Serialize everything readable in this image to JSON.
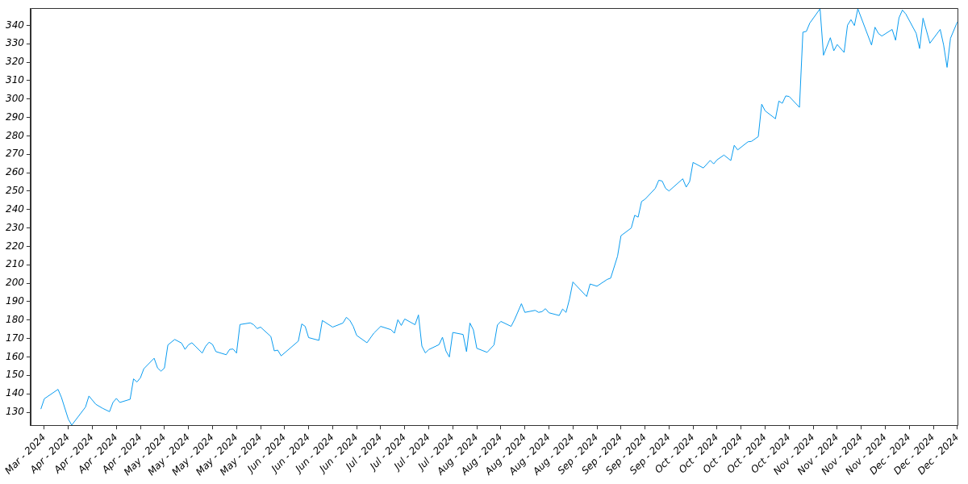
{
  "chart_data": {
    "type": "line",
    "x": [
      "2024-03-27",
      "2024-03-28",
      "2024-04-01",
      "2024-04-02",
      "2024-04-04",
      "2024-04-05",
      "2024-04-09",
      "2024-04-10",
      "2024-04-12",
      "2024-04-14",
      "2024-04-16",
      "2024-04-17",
      "2024-04-18",
      "2024-04-19",
      "2024-04-22",
      "2024-04-23",
      "2024-04-24",
      "2024-04-25",
      "2024-04-26",
      "2024-04-29",
      "2024-04-30",
      "2024-05-01",
      "2024-05-02",
      "2024-05-03",
      "2024-05-05",
      "2024-05-07",
      "2024-05-08",
      "2024-05-09",
      "2024-05-10",
      "2024-05-13",
      "2024-05-14",
      "2024-05-15",
      "2024-05-16",
      "2024-05-17",
      "2024-05-20",
      "2024-05-21",
      "2024-05-22",
      "2024-05-23",
      "2024-05-24",
      "2024-05-27",
      "2024-05-28",
      "2024-05-29",
      "2024-05-30",
      "2024-06-02",
      "2024-06-03",
      "2024-06-04",
      "2024-06-05",
      "2024-06-10",
      "2024-06-11",
      "2024-06-12",
      "2024-06-13",
      "2024-06-16",
      "2024-06-17",
      "2024-06-20",
      "2024-06-23",
      "2024-06-24",
      "2024-06-25",
      "2024-06-26",
      "2024-06-27",
      "2024-06-30",
      "2024-07-02",
      "2024-07-04",
      "2024-07-07",
      "2024-07-08",
      "2024-07-09",
      "2024-07-10",
      "2024-07-11",
      "2024-07-14",
      "2024-07-15",
      "2024-07-16",
      "2024-07-17",
      "2024-07-18",
      "2024-07-21",
      "2024-07-22",
      "2024-07-23",
      "2024-07-24",
      "2024-07-25",
      "2024-07-28",
      "2024-07-29",
      "2024-07-30",
      "2024-07-31",
      "2024-08-01",
      "2024-08-04",
      "2024-08-06",
      "2024-08-07",
      "2024-08-08",
      "2024-08-11",
      "2024-08-12",
      "2024-08-14",
      "2024-08-15",
      "2024-08-18",
      "2024-08-19",
      "2024-08-20",
      "2024-08-21",
      "2024-08-22",
      "2024-08-25",
      "2024-08-26",
      "2024-08-27",
      "2024-08-28",
      "2024-08-29",
      "2024-09-02",
      "2024-09-03",
      "2024-09-05",
      "2024-09-08",
      "2024-09-09",
      "2024-09-11",
      "2024-09-12",
      "2024-09-15",
      "2024-09-16",
      "2024-09-17",
      "2024-09-18",
      "2024-09-19",
      "2024-09-22",
      "2024-09-23",
      "2024-09-24",
      "2024-09-25",
      "2024-09-26",
      "2024-09-30",
      "2024-10-01",
      "2024-10-02",
      "2024-10-03",
      "2024-10-06",
      "2024-10-08",
      "2024-10-09",
      "2024-10-10",
      "2024-10-12",
      "2024-10-14",
      "2024-10-15",
      "2024-10-16",
      "2024-10-19",
      "2024-10-20",
      "2024-10-22",
      "2024-10-23",
      "2024-10-24",
      "2024-10-27",
      "2024-10-28",
      "2024-10-29",
      "2024-10-30",
      "2024-10-31",
      "2024-11-03",
      "2024-11-04",
      "2024-11-05",
      "2024-11-06",
      "2024-11-09",
      "2024-11-10",
      "2024-11-12",
      "2024-11-13",
      "2024-11-14",
      "2024-11-16",
      "2024-11-17",
      "2024-11-18",
      "2024-11-19",
      "2024-11-20",
      "2024-11-24",
      "2024-11-25",
      "2024-11-26",
      "2024-11-27",
      "2024-11-30",
      "2024-12-01",
      "2024-12-02",
      "2024-12-03",
      "2024-12-04",
      "2024-12-07",
      "2024-12-08",
      "2024-12-09",
      "2024-12-11",
      "2024-12-14",
      "2024-12-15",
      "2024-12-16",
      "2024-12-17",
      "2024-12-19"
    ],
    "series": [
      {
        "color": "#0a9cf0",
        "values": [
          131.7,
          137.3,
          142.4,
          138.0,
          126.2,
          123.0,
          132.8,
          138.8,
          134.3,
          132.1,
          130.3,
          135.3,
          137.5,
          135.3,
          137.0,
          148.1,
          146.4,
          148.7,
          153.6,
          159.3,
          154.0,
          152.3,
          154.0,
          166.5,
          169.5,
          167.5,
          164.1,
          166.6,
          167.7,
          162.1,
          165.8,
          168.0,
          166.8,
          162.9,
          161.2,
          164.1,
          164.3,
          162.1,
          177.6,
          178.5,
          177.5,
          175.4,
          176.2,
          171.1,
          163.3,
          163.7,
          160.6,
          168.6,
          177.9,
          176.6,
          170.5,
          169.0,
          179.8,
          176.2,
          178.4,
          181.5,
          179.9,
          176.6,
          171.7,
          167.7,
          172.9,
          176.6,
          174.8,
          172.9,
          180.2,
          177.1,
          180.6,
          177.5,
          182.8,
          165.9,
          162.2,
          164.0,
          166.7,
          170.7,
          163.3,
          160.0,
          173.3,
          172.2,
          162.9,
          178.4,
          174.7,
          164.7,
          162.5,
          166.5,
          177.3,
          179.3,
          176.6,
          180.3,
          188.9,
          184.2,
          185.3,
          184.2,
          184.6,
          186.2,
          184.0,
          182.5,
          186.0,
          184.2,
          191.4,
          200.7,
          192.8,
          199.6,
          198.4,
          202.1,
          202.8,
          214.7,
          225.8,
          230.0,
          236.9,
          235.9,
          244.4,
          245.6,
          251.5,
          255.9,
          255.5,
          251.5,
          250.1,
          256.7,
          252.2,
          255.2,
          265.6,
          262.6,
          266.7,
          264.8,
          267.0,
          269.6,
          266.6,
          274.9,
          272.4,
          276.8,
          277.0,
          279.6,
          297.2,
          293.6,
          289.3,
          298.9,
          297.7,
          301.7,
          301.4,
          295.5,
          336.3,
          336.7,
          341.2,
          349.0,
          323.8,
          333.3,
          326.2,
          329.6,
          325.3,
          340.1,
          343.1,
          339.9,
          349.0,
          329.3,
          339.0,
          335.6,
          334.2,
          337.8,
          331.9,
          344.1,
          348.3,
          346.1,
          335.7,
          327.4,
          343.9,
          330.3,
          337.8,
          329.3,
          317.2,
          333.0,
          341.9
        ]
      }
    ],
    "xlim": [
      "2024-03-24",
      "2024-12-19"
    ],
    "xticks": [
      {
        "value": "2024-03-28",
        "label": "Mar - 2024"
      },
      {
        "value": "2024-04-04",
        "label": "Apr - 2024"
      },
      {
        "value": "2024-04-11",
        "label": "Apr - 2024"
      },
      {
        "value": "2024-04-18",
        "label": "Apr - 2024"
      },
      {
        "value": "2024-04-25",
        "label": "Apr - 2024"
      },
      {
        "value": "2024-05-02",
        "label": "May - 2024"
      },
      {
        "value": "2024-05-09",
        "label": "May - 2024"
      },
      {
        "value": "2024-05-16",
        "label": "May - 2024"
      },
      {
        "value": "2024-05-23",
        "label": "May - 2024"
      },
      {
        "value": "2024-05-30",
        "label": "May - 2024"
      },
      {
        "value": "2024-06-06",
        "label": "Jun - 2024"
      },
      {
        "value": "2024-06-13",
        "label": "Jun - 2024"
      },
      {
        "value": "2024-06-20",
        "label": "Jun - 2024"
      },
      {
        "value": "2024-06-27",
        "label": "Jun - 2024"
      },
      {
        "value": "2024-07-04",
        "label": "Jul - 2024"
      },
      {
        "value": "2024-07-11",
        "label": "Jul - 2024"
      },
      {
        "value": "2024-07-18",
        "label": "Jul - 2024"
      },
      {
        "value": "2024-07-25",
        "label": "Jul - 2024"
      },
      {
        "value": "2024-08-01",
        "label": "Aug - 2024"
      },
      {
        "value": "2024-08-08",
        "label": "Aug - 2024"
      },
      {
        "value": "2024-08-15",
        "label": "Aug - 2024"
      },
      {
        "value": "2024-08-22",
        "label": "Aug - 2024"
      },
      {
        "value": "2024-08-29",
        "label": "Aug - 2024"
      },
      {
        "value": "2024-09-05",
        "label": "Sep - 2024"
      },
      {
        "value": "2024-09-12",
        "label": "Sep - 2024"
      },
      {
        "value": "2024-09-19",
        "label": "Sep - 2024"
      },
      {
        "value": "2024-09-26",
        "label": "Sep - 2024"
      },
      {
        "value": "2024-10-03",
        "label": "Oct - 2024"
      },
      {
        "value": "2024-10-10",
        "label": "Oct - 2024"
      },
      {
        "value": "2024-10-17",
        "label": "Oct - 2024"
      },
      {
        "value": "2024-10-24",
        "label": "Oct - 2024"
      },
      {
        "value": "2024-10-31",
        "label": "Oct - 2024"
      },
      {
        "value": "2024-11-07",
        "label": "Nov - 2024"
      },
      {
        "value": "2024-11-14",
        "label": "Nov - 2024"
      },
      {
        "value": "2024-11-21",
        "label": "Nov - 2024"
      },
      {
        "value": "2024-11-28",
        "label": "Nov - 2024"
      },
      {
        "value": "2024-12-05",
        "label": "Dec - 2024"
      },
      {
        "value": "2024-12-12",
        "label": "Dec - 2024"
      },
      {
        "value": "2024-12-19",
        "label": "Dec - 2024"
      }
    ],
    "ylim": [
      122.9,
      349.3
    ],
    "yticks": [
      130,
      140,
      150,
      160,
      170,
      180,
      190,
      200,
      210,
      220,
      230,
      240,
      250,
      260,
      270,
      280,
      290,
      300,
      310,
      320,
      330,
      340
    ],
    "grid": false,
    "legend": false,
    "marker": "none",
    "line_style": "solid"
  }
}
